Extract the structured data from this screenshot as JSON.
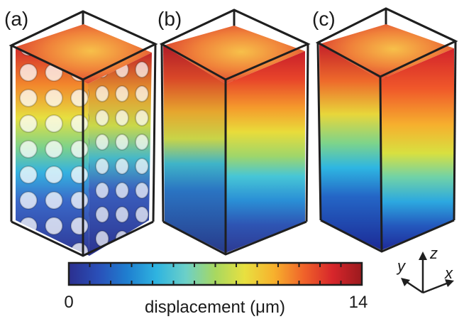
{
  "panels": [
    {
      "label": "(a)",
      "kind": "lattice"
    },
    {
      "label": "(b)",
      "kind": "solid-smooth"
    },
    {
      "label": "(c)",
      "kind": "solid-sharp"
    }
  ],
  "colorbar": {
    "min_label": "0",
    "max_label": "14",
    "title": "displacement (μm)",
    "min": 0,
    "max": 14,
    "colormap": "jet"
  },
  "axes": {
    "y_label": "y",
    "z_label": "z",
    "x_label": "x"
  },
  "colors": {
    "frame": "#1f1f1f",
    "jet_stops": [
      "#2b2f8f",
      "#2a4fb8",
      "#1f7fd0",
      "#2fb4e0",
      "#6cd0c8",
      "#a8d860",
      "#e8e040",
      "#f7b12d",
      "#f0642a",
      "#d7262b",
      "#9b1a1e"
    ]
  }
}
